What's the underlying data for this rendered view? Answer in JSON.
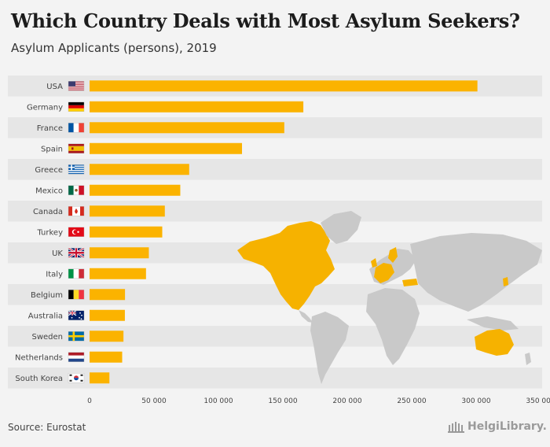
{
  "header": {
    "title": "Which Country Deals with Most Asylum Seekers?",
    "subtitle": "Asylum Applicants (persons), 2019"
  },
  "footer": {
    "source": "Source: Eurostat",
    "logo_text": "HelgiLibrary."
  },
  "colors": {
    "bar": "#fbb300",
    "row_band": "#e6e6e6",
    "map_land": "#c9c9c9",
    "map_highlight": "#f6b200"
  },
  "chart_data": {
    "type": "bar",
    "orientation": "horizontal",
    "title": "Which Country Deals with Most Asylum Seekers?",
    "subtitle": "Asylum Applicants (persons), 2019",
    "xlabel": "",
    "ylabel": "",
    "xlim": [
      0,
      350000
    ],
    "xticks": [
      0,
      50000,
      100000,
      150000,
      200000,
      250000,
      300000,
      350000
    ],
    "xtick_labels": [
      "0",
      "50 000",
      "100 000",
      "150 000",
      "200 000",
      "250 000",
      "300 000",
      "350 000"
    ],
    "categories": [
      "USA",
      "Germany",
      "France",
      "Spain",
      "Greece",
      "Mexico",
      "Canada",
      "Turkey",
      "UK",
      "Italy",
      "Belgium",
      "Australia",
      "Sweden",
      "Netherlands",
      "South Korea"
    ],
    "flags": [
      "us-flag",
      "de-flag",
      "fr-flag",
      "es-flag",
      "gr-flag",
      "mx-flag",
      "ca-flag",
      "tr-flag",
      "uk-flag",
      "it-flag",
      "be-flag",
      "au-flag",
      "se-flag",
      "nl-flag",
      "kr-flag"
    ],
    "values": [
      301000,
      165900,
      151100,
      118300,
      77300,
      70400,
      58400,
      56400,
      46000,
      43800,
      27500,
      27400,
      26300,
      25300,
      15400
    ]
  }
}
